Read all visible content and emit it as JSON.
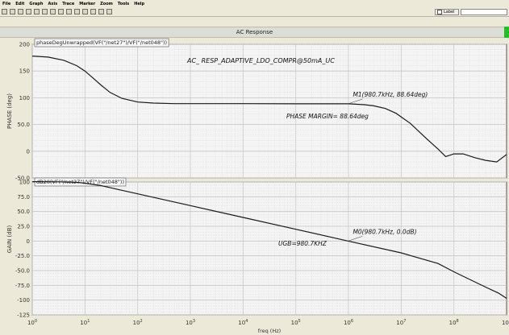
{
  "menu": [
    "File",
    "Edit",
    "Graph",
    "Axis",
    "Trace",
    "Marker",
    "Zoom",
    "Tools",
    "Help"
  ],
  "toolbar": {
    "label_checkbox": "Label"
  },
  "window": {
    "title": "AC Response"
  },
  "chart_data": [
    {
      "type": "line",
      "trace_label": "phaseDegUnwrapped(VF(\"/net27\")/VF(\"/net048\"))",
      "title": "AC_ RESP_ADAPTIVE_LDO_COMPR@50mA_UC",
      "ylabel": "PHASE (deg)",
      "xscale": "log",
      "xlim": [
        1,
        1000000000
      ],
      "ylim": [
        -50,
        200
      ],
      "yticks": [
        -50,
        0,
        50,
        100,
        150,
        200
      ],
      "ytick_labels": [
        "-50.0",
        "0",
        "50.0",
        "100",
        "150",
        "200"
      ],
      "grid": true,
      "series": [
        {
          "x": [
            1,
            2,
            4,
            7,
            10,
            15,
            20,
            30,
            50,
            100,
            200,
            500,
            1000,
            10000,
            100000,
            500000,
            1000000,
            2000000,
            3000000,
            5000000,
            8000000,
            15000000,
            30000000,
            50000000,
            70000000,
            100000000,
            150000000,
            250000000,
            400000000,
            650000000,
            1000000000
          ],
          "y": [
            178,
            176,
            170,
            160,
            150,
            135,
            124,
            110,
            99,
            92,
            90,
            89,
            89,
            89,
            88.7,
            88.7,
            88.64,
            87,
            85,
            80,
            71,
            52,
            24,
            4,
            -10,
            -5,
            -5,
            -12,
            -17,
            -20,
            -6
          ]
        }
      ],
      "markers": [
        {
          "label": "M1(980.7kHz, 88.64deg)",
          "x": 980700,
          "y": 88.64
        }
      ],
      "annotations": [
        "PHASE MARGIN= 88.64deg"
      ]
    },
    {
      "type": "line",
      "trace_label": "dB20(VF(\"/net27\")/VF(\"/net048\"))",
      "xlabel": "freq (Hz)",
      "ylabel": "GAIN (dB)",
      "xscale": "log",
      "xlim": [
        1,
        1000000000
      ],
      "ylim": [
        -125,
        100
      ],
      "yticks": [
        -125,
        -100,
        -75,
        -50,
        -25,
        0,
        25,
        50,
        75,
        100
      ],
      "ytick_labels": [
        "-125",
        "-100",
        "-75.0",
        "-50.0",
        "-25.0",
        "0",
        "25.0",
        "50.0",
        "75.0",
        "100"
      ],
      "xtick_labels": [
        "10^0",
        "10^1",
        "10^2",
        "10^3",
        "10^4",
        "10^5",
        "10^6",
        "10^7",
        "10^8",
        "10^9"
      ],
      "grid": true,
      "series": [
        {
          "x": [
            1,
            3,
            7,
            10,
            20,
            50,
            100,
            1000,
            10000,
            100000,
            980700,
            10000000,
            50000000,
            100000000,
            200000000,
            400000000,
            700000000,
            1000000000
          ],
          "y": [
            100.5,
            100.3,
            99.5,
            98,
            94,
            86,
            80,
            60,
            40,
            20,
            0,
            -20,
            -38,
            -52,
            -65,
            -78,
            -88,
            -97
          ]
        }
      ],
      "markers": [
        {
          "label": "M0(980.7kHz, 0.0dB)",
          "x": 980700,
          "y": 0
        }
      ],
      "annotations": [
        "UGB=980.7KHZ"
      ]
    }
  ]
}
